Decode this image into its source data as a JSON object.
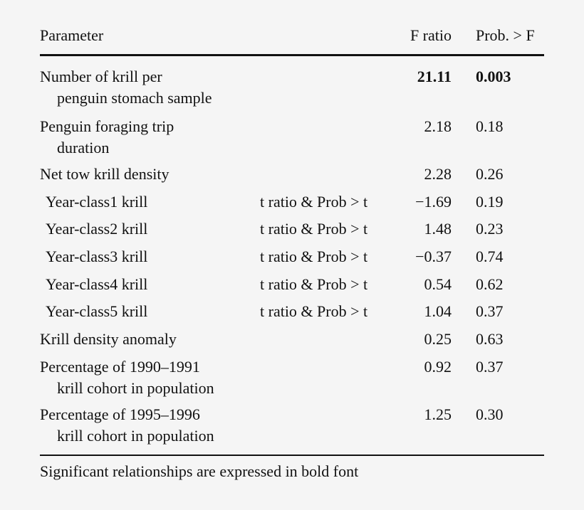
{
  "header": {
    "parameter": "Parameter",
    "f_ratio": "F ratio",
    "prob": "Prob. > F"
  },
  "rows": [
    {
      "line1": "Number of krill per",
      "line2": "penguin stomach sample",
      "test": "",
      "f": "21.11",
      "p": "0.003",
      "bold": true
    },
    {
      "line1": "Penguin foraging trip",
      "line2": "duration",
      "test": "",
      "f": "2.18",
      "p": "0.18"
    },
    {
      "line1": "Net tow krill density",
      "line2": "",
      "test": "",
      "f": "2.28",
      "p": "0.26"
    },
    {
      "line1": "Year-class1 krill",
      "line2": "",
      "test": "t ratio & Prob > t",
      "f": "−1.69",
      "p": "0.19",
      "sub": true
    },
    {
      "line1": "Year-class2 krill",
      "line2": "",
      "test": "t ratio & Prob > t",
      "f": "1.48",
      "p": "0.23",
      "sub": true
    },
    {
      "line1": "Year-class3 krill",
      "line2": "",
      "test": "t ratio & Prob > t",
      "f": "−0.37",
      "p": "0.74",
      "sub": true
    },
    {
      "line1": "Year-class4 krill",
      "line2": "",
      "test": "t ratio & Prob > t",
      "f": "0.54",
      "p": "0.62",
      "sub": true
    },
    {
      "line1": "Year-class5 krill",
      "line2": "",
      "test": "t ratio & Prob > t",
      "f": "1.04",
      "p": "0.37",
      "sub": true
    },
    {
      "line1": "Krill density anomaly",
      "line2": "",
      "test": "",
      "f": "0.25",
      "p": "0.63"
    },
    {
      "line1": "Percentage of 1990–1991",
      "line2": "krill cohort in population",
      "test": "",
      "f": "0.92",
      "p": "0.37"
    },
    {
      "line1": "Percentage of 1995–1996",
      "line2": "krill cohort in population",
      "test": "",
      "f": "1.25",
      "p": "0.30"
    }
  ],
  "footnote": "Significant relationships are expressed in bold font"
}
